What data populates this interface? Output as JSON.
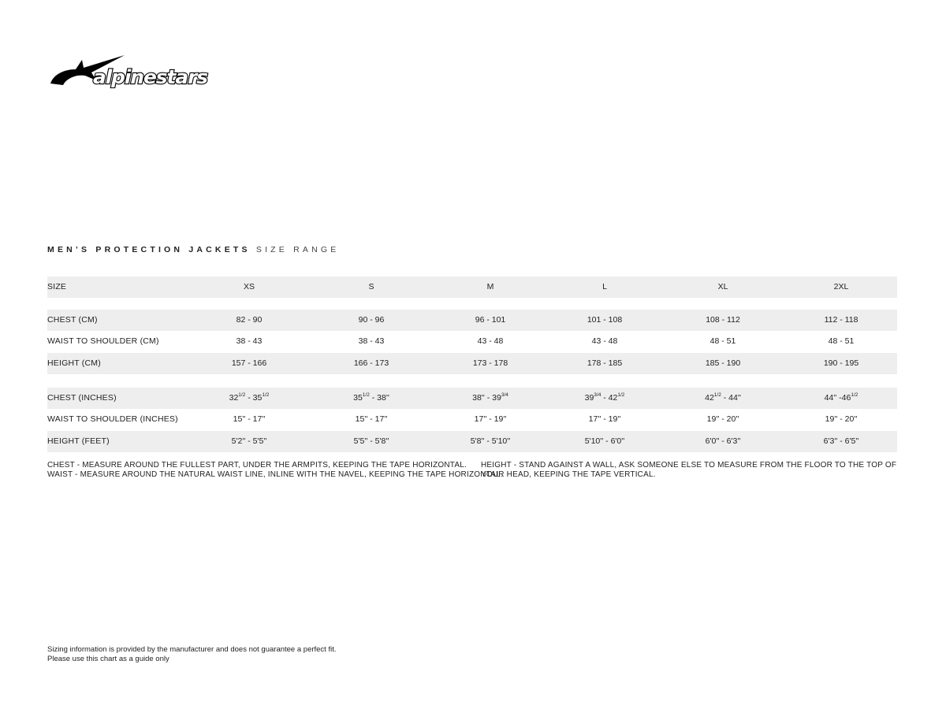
{
  "brand": {
    "logo_text": "alpinestars"
  },
  "title": {
    "bold": "MEN’S PROTECTION JACKETS",
    "light": "SIZE RANGE"
  },
  "header": {
    "label": "SIZE",
    "sizes": [
      "XS",
      "S",
      "M",
      "L",
      "XL",
      "2XL"
    ]
  },
  "metric_rows": [
    {
      "label": "CHEST (CM)",
      "values": [
        [
          {
            "text": "82 - 90"
          }
        ],
        [
          {
            "text": "90 - 96"
          }
        ],
        [
          {
            "text": "96 - 101"
          }
        ],
        [
          {
            "text": "101 - 108"
          }
        ],
        [
          {
            "text": "108 - 112"
          }
        ],
        [
          {
            "text": "112 - 118"
          }
        ]
      ]
    },
    {
      "label": "WAIST TO SHOULDER (CM)",
      "values": [
        [
          {
            "text": "38 - 43"
          }
        ],
        [
          {
            "text": "38 - 43"
          }
        ],
        [
          {
            "text": "43 - 48"
          }
        ],
        [
          {
            "text": "43 - 48"
          }
        ],
        [
          {
            "text": "48 - 51"
          }
        ],
        [
          {
            "text": "48 - 51"
          }
        ]
      ]
    },
    {
      "label": "HEIGHT (CM)",
      "values": [
        [
          {
            "text": "157 - 166"
          }
        ],
        [
          {
            "text": "166 - 173"
          }
        ],
        [
          {
            "text": "173 - 178"
          }
        ],
        [
          {
            "text": "178 - 185"
          }
        ],
        [
          {
            "text": "185 - 190"
          }
        ],
        [
          {
            "text": "190 - 195"
          }
        ]
      ]
    }
  ],
  "imperial_rows": [
    {
      "label": "CHEST (INCHES)",
      "values": [
        [
          {
            "text": "32"
          },
          {
            "sup": "1/2"
          },
          {
            "text": " - 35"
          },
          {
            "sup": "1/2"
          }
        ],
        [
          {
            "text": "35"
          },
          {
            "sup": "1/2"
          },
          {
            "text": " - 38''"
          }
        ],
        [
          {
            "text": "38'' - 39"
          },
          {
            "sup": "3/4"
          }
        ],
        [
          {
            "text": "39"
          },
          {
            "sup": "3/4"
          },
          {
            "text": " - 42"
          },
          {
            "sup": "1/2"
          }
        ],
        [
          {
            "text": "42"
          },
          {
            "sup": "1/2"
          },
          {
            "text": " - 44''"
          }
        ],
        [
          {
            "text": "44'' -46"
          },
          {
            "sup": "1/2"
          }
        ]
      ]
    },
    {
      "label": "WAIST TO SHOULDER (INCHES)",
      "values": [
        [
          {
            "text": "15'' - 17''"
          }
        ],
        [
          {
            "text": "15'' - 17''"
          }
        ],
        [
          {
            "text": "17'' - 19''"
          }
        ],
        [
          {
            "text": "17'' - 19''"
          }
        ],
        [
          {
            "text": "19'' - 20''"
          }
        ],
        [
          {
            "text": "19'' - 20''"
          }
        ]
      ]
    },
    {
      "label": "HEIGHT (FEET)",
      "values": [
        [
          {
            "text": "5'2'' - 5'5''"
          }
        ],
        [
          {
            "text": "5'5'' - 5'8''"
          }
        ],
        [
          {
            "text": "5'8'' - 5'10''"
          }
        ],
        [
          {
            "text": "5'10'' - 6'0''"
          }
        ],
        [
          {
            "text": "6'0'' - 6'3''"
          }
        ],
        [
          {
            "text": "6'3'' - 6'5''"
          }
        ]
      ]
    }
  ],
  "notes": {
    "chest": "CHEST - MEASURE AROUND THE FULLEST PART, UNDER THE ARMPITS, KEEPING THE TAPE HORIZONTAL.",
    "waist": "WAIST - MEASURE AROUND THE NATURAL WAIST LINE, INLINE WITH THE NAVEL, KEEPING THE TAPE HORIZONTAL.",
    "height": "HEIGHT - STAND AGAINST A WALL, ASK SOMEONE ELSE TO MEASURE FROM THE FLOOR TO THE TOP OF YOUR HEAD, KEEPING THE TAPE VERTICAL."
  },
  "disclaimer": {
    "line1": "Sizing information is provided by the manufacturer and does not guarantee a perfect fit.",
    "line2": "Please use this chart as a guide only"
  }
}
